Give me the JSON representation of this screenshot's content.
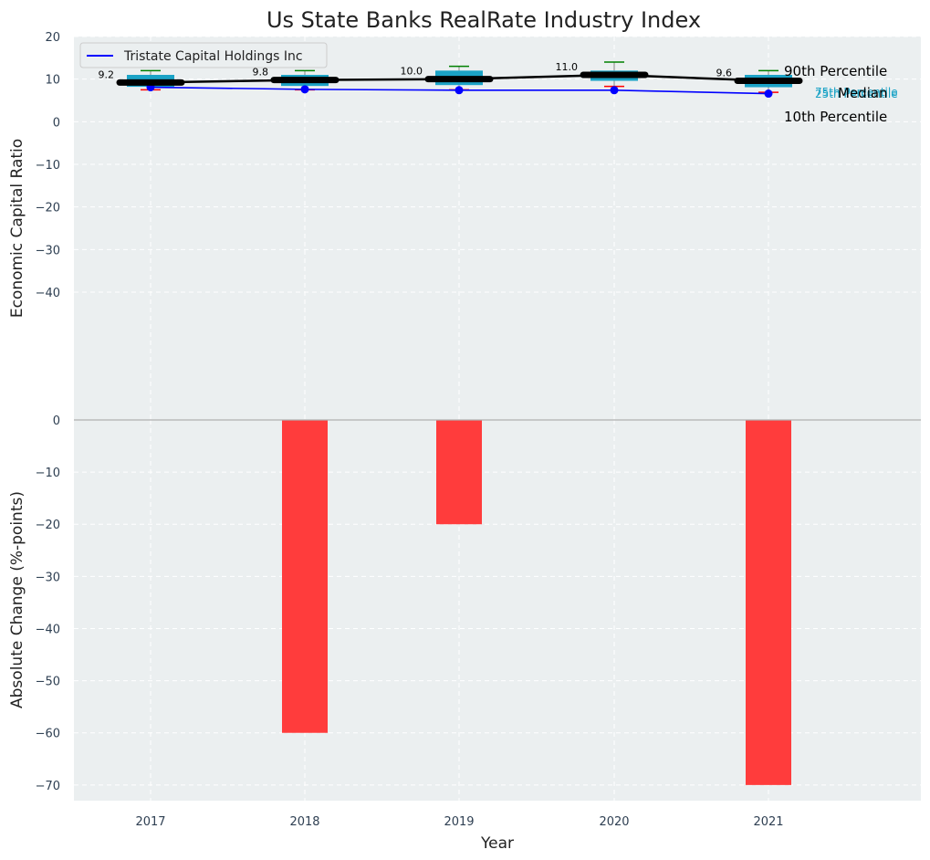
{
  "chart_data": [
    {
      "type": "box",
      "title": "Us State Banks RealRate Industry Index",
      "ylabel": "Economic Capital Ratio",
      "ylim": [
        -70,
        20
      ],
      "yticks": [
        20,
        10,
        0,
        -10,
        -20,
        -30,
        -40
      ],
      "ytick_labels": [
        "20",
        "10",
        "0",
        "−10",
        "−20",
        "−30",
        "−40"
      ],
      "categories": [
        "2017",
        "2018",
        "2019",
        "2020",
        "2021"
      ],
      "percentiles": {
        "p10": [
          7.5,
          7.5,
          7.5,
          8.3,
          6.9
        ],
        "p25": [
          8.2,
          8.4,
          8.6,
          9.6,
          8.1
        ],
        "median": [
          9.2,
          9.8,
          10.0,
          11.0,
          9.6
        ],
        "p75": [
          11.0,
          11.0,
          12.0,
          12.0,
          11.0
        ],
        "p90": [
          12.0,
          12.0,
          13.0,
          14.0,
          12.0
        ]
      },
      "median_labels": [
        "9.2",
        "9.8",
        "10.0",
        "11.0",
        "9.6"
      ],
      "series": [
        {
          "name": "Tristate Capital Holdings Inc",
          "values": [
            8.1,
            7.6,
            7.4,
            7.4,
            6.6
          ]
        }
      ],
      "annotations": {
        "p90": "90th Percentile",
        "p75": "75th Percentile",
        "median": "Median",
        "p25": "25th Percentile",
        "p10": "10th Percentile"
      },
      "legend_position": "top-left",
      "grid": true,
      "colors": {
        "box": "#1ba3c6",
        "median": "#000000",
        "whisker_high": "#008000",
        "whisker_low": "#ff0000",
        "series": "#0000ff",
        "background": "#ebeff0"
      }
    },
    {
      "type": "bar",
      "xlabel": "Year",
      "ylabel": "Absolute Change (%-points)",
      "ylim": [
        -73,
        0
      ],
      "yticks": [
        0,
        -10,
        -20,
        -30,
        -40,
        -50,
        -60,
        -70
      ],
      "ytick_labels": [
        "0",
        "−10",
        "−20",
        "−30",
        "−40",
        "−50",
        "−60",
        "−70"
      ],
      "categories": [
        "2017",
        "2018",
        "2019",
        "2020",
        "2021"
      ],
      "values": [
        0,
        -60,
        -20,
        0,
        -70
      ],
      "grid": true,
      "colors": {
        "bar": "#ff3c3c",
        "background": "#ebeff0"
      }
    }
  ]
}
